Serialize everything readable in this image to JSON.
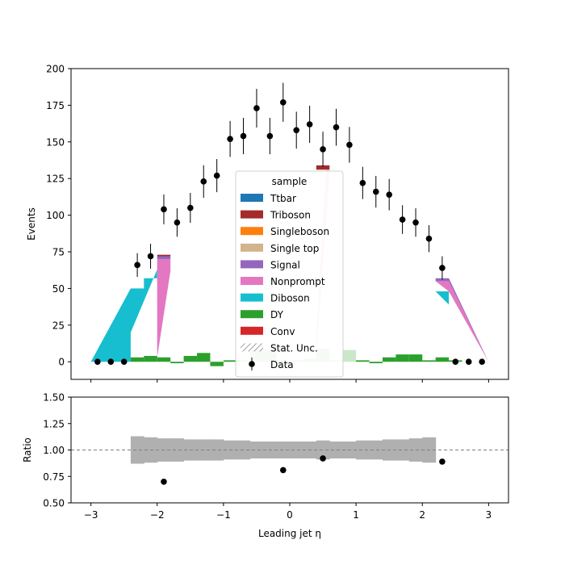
{
  "chart_data": [
    {
      "type": "bar",
      "ylabel": "Events",
      "ylim": [
        -12,
        200
      ],
      "xlim": [
        -3.3,
        3.3
      ],
      "y_ticks": [
        0,
        25,
        50,
        75,
        100,
        125,
        150,
        175,
        200
      ],
      "legend": {
        "title": "sample",
        "placement": "center",
        "entries": [
          {
            "name": "Ttbar",
            "color": "#1f77b4",
            "kind": "patch"
          },
          {
            "name": "Triboson",
            "color": "#a52a2a",
            "kind": "patch"
          },
          {
            "name": "Singleboson",
            "color": "#ff7f0e",
            "kind": "patch"
          },
          {
            "name": "Single top",
            "color": "#d2b48c",
            "kind": "patch"
          },
          {
            "name": "Signal",
            "color": "#9467bd",
            "kind": "patch"
          },
          {
            "name": "Nonprompt",
            "color": "#e377c2",
            "kind": "patch"
          },
          {
            "name": "Diboson",
            "color": "#17becf",
            "kind": "patch"
          },
          {
            "name": "DY",
            "color": "#2ca02c",
            "kind": "patch"
          },
          {
            "name": "Conv",
            "color": "#d62728",
            "kind": "patch"
          },
          {
            "name": "Stat. Unc.",
            "color": "#888888",
            "kind": "hatch"
          },
          {
            "name": "Data",
            "color": "#000000",
            "kind": "errorbar"
          }
        ]
      },
      "stack_bin_edges": [
        -3.0,
        -2.8,
        -2.6,
        -2.4,
        -2.2,
        -2.0,
        -1.8,
        -1.6,
        -1.4,
        -1.2,
        -1.0,
        -0.8,
        -0.6,
        -0.4,
        -0.2,
        0.0,
        0.2,
        0.4,
        0.6,
        0.8,
        1.0,
        1.2,
        1.4,
        1.6,
        1.8,
        2.0,
        2.2,
        2.4,
        2.6,
        2.8,
        3.0
      ],
      "dy_values": [
        0,
        0,
        0,
        3,
        4,
        3,
        -1,
        4,
        6,
        -3,
        1,
        1,
        8,
        8,
        1,
        1,
        2,
        9,
        1,
        8,
        1,
        -1,
        3,
        5,
        5,
        1,
        3,
        1,
        0,
        0
      ],
      "diboson_polygons": [
        {
          "name": "Diboson",
          "points": [
            [
              -3.0,
              0
            ],
            [
              -2.4,
              50
            ],
            [
              -2.4,
              50
            ],
            [
              -2.2,
              50
            ],
            [
              -2.2,
              57
            ],
            [
              -2.0,
              57
            ],
            [
              -2.0,
              63
            ],
            [
              -2.4,
              20
            ],
            [
              -2.4,
              0
            ]
          ]
        },
        {
          "name": "Diboson",
          "points": [
            [
              2.4,
              0
            ],
            [
              2.4,
              48
            ],
            [
              2.2,
              48
            ],
            [
              2.4,
              39
            ],
            [
              2.4,
              0
            ],
            [
              3.0,
              0
            ]
          ]
        }
      ],
      "nonprompt_polygons": [
        {
          "name": "Nonprompt",
          "points": [
            [
              -2.0,
              3
            ],
            [
              -2.0,
              70
            ],
            [
              -1.8,
              70
            ],
            [
              -1.8,
              62
            ]
          ]
        },
        {
          "name": "Nonprompt",
          "points": [
            [
              0.4,
              3
            ],
            [
              0.6,
              131
            ],
            [
              0.55,
              131
            ],
            [
              0.4,
              20
            ]
          ],
          "opacity": 0.3
        },
        {
          "name": "Nonprompt",
          "points": [
            [
              2.2,
              55
            ],
            [
              2.4,
              55
            ],
            [
              3.0,
              0
            ],
            [
              2.4,
              48
            ]
          ]
        }
      ],
      "signal_polygons": [
        {
          "name": "Signal",
          "points": [
            [
              -2.0,
              70
            ],
            [
              -2.0,
              72
            ],
            [
              -1.8,
              72
            ],
            [
              -1.8,
              70
            ]
          ]
        },
        {
          "name": "Signal",
          "points": [
            [
              2.2,
              55
            ],
            [
              2.2,
              57
            ],
            [
              2.4,
              57
            ],
            [
              3.0,
              0
            ],
            [
              2.4,
              55
            ]
          ]
        }
      ],
      "triboson_polygons": [
        {
          "name": "Triboson",
          "points": [
            [
              -2.0,
              72
            ],
            [
              -2.0,
              73
            ],
            [
              -1.8,
              73
            ],
            [
              -1.8,
              72
            ]
          ]
        },
        {
          "name": "Triboson",
          "points": [
            [
              0.4,
              131
            ],
            [
              0.4,
              134
            ],
            [
              0.6,
              134
            ],
            [
              0.6,
              131
            ]
          ]
        }
      ],
      "data_points": [
        {
          "x": -2.9,
          "y": 0,
          "err": 0
        },
        {
          "x": -2.7,
          "y": 0,
          "err": 0
        },
        {
          "x": -2.5,
          "y": 0,
          "err": 0
        },
        {
          "x": -2.3,
          "y": 66,
          "err": 8.1
        },
        {
          "x": -2.1,
          "y": 72,
          "err": 8.5
        },
        {
          "x": -1.9,
          "y": 104,
          "err": 10.2
        },
        {
          "x": -1.7,
          "y": 95,
          "err": 9.7
        },
        {
          "x": -1.5,
          "y": 105,
          "err": 10.2
        },
        {
          "x": -1.3,
          "y": 123,
          "err": 11.1
        },
        {
          "x": -1.1,
          "y": 127,
          "err": 11.3
        },
        {
          "x": -0.9,
          "y": 152,
          "err": 12.3
        },
        {
          "x": -0.7,
          "y": 154,
          "err": 12.4
        },
        {
          "x": -0.5,
          "y": 173,
          "err": 13.2
        },
        {
          "x": -0.3,
          "y": 154,
          "err": 12.4
        },
        {
          "x": -0.1,
          "y": 177,
          "err": 13.3
        },
        {
          "x": 0.1,
          "y": 158,
          "err": 12.6
        },
        {
          "x": 0.3,
          "y": 162,
          "err": 12.7
        },
        {
          "x": 0.5,
          "y": 145,
          "err": 12.0
        },
        {
          "x": 0.7,
          "y": 160,
          "err": 12.6
        },
        {
          "x": 0.9,
          "y": 148,
          "err": 12.2
        },
        {
          "x": 1.1,
          "y": 122,
          "err": 11.0
        },
        {
          "x": 1.3,
          "y": 116,
          "err": 10.8
        },
        {
          "x": 1.5,
          "y": 114,
          "err": 10.7
        },
        {
          "x": 1.7,
          "y": 97,
          "err": 9.8
        },
        {
          "x": 1.9,
          "y": 95,
          "err": 9.7
        },
        {
          "x": 2.1,
          "y": 84,
          "err": 9.2
        },
        {
          "x": 2.3,
          "y": 64,
          "err": 8.0
        },
        {
          "x": 2.5,
          "y": 0,
          "err": 0
        },
        {
          "x": 2.7,
          "y": 0,
          "err": 0
        },
        {
          "x": 2.9,
          "y": 0,
          "err": 0
        }
      ]
    },
    {
      "type": "scatter",
      "xlabel": "Leading jet  η",
      "ylabel": "Ratio",
      "ylim": [
        0.5,
        1.5
      ],
      "xlim": [
        -3.3,
        3.3
      ],
      "y_ticks": [
        "0.50",
        "0.75",
        "1.00",
        "1.25",
        "1.50"
      ],
      "x_ticks": [
        -3,
        -2,
        -1,
        0,
        1,
        2,
        3
      ],
      "reference_line": 1.0,
      "unc_band_edges": [
        -2.4,
        -2.2,
        -2.0,
        -1.8,
        -1.6,
        -1.4,
        -1.2,
        -1.0,
        -0.8,
        -0.6,
        -0.4,
        -0.2,
        0.0,
        0.2,
        0.4,
        0.6,
        0.8,
        1.0,
        1.2,
        1.4,
        1.6,
        1.8,
        2.0,
        2.2
      ],
      "unc_band_halfwidth": [
        0.13,
        0.12,
        0.11,
        0.11,
        0.1,
        0.1,
        0.1,
        0.09,
        0.09,
        0.08,
        0.08,
        0.08,
        0.08,
        0.08,
        0.09,
        0.08,
        0.08,
        0.09,
        0.09,
        0.1,
        0.1,
        0.11,
        0.12
      ],
      "points": [
        {
          "x": -1.9,
          "y": 0.7
        },
        {
          "x": -0.1,
          "y": 0.81
        },
        {
          "x": 0.5,
          "y": 0.92
        },
        {
          "x": 2.3,
          "y": 0.89
        }
      ]
    }
  ]
}
